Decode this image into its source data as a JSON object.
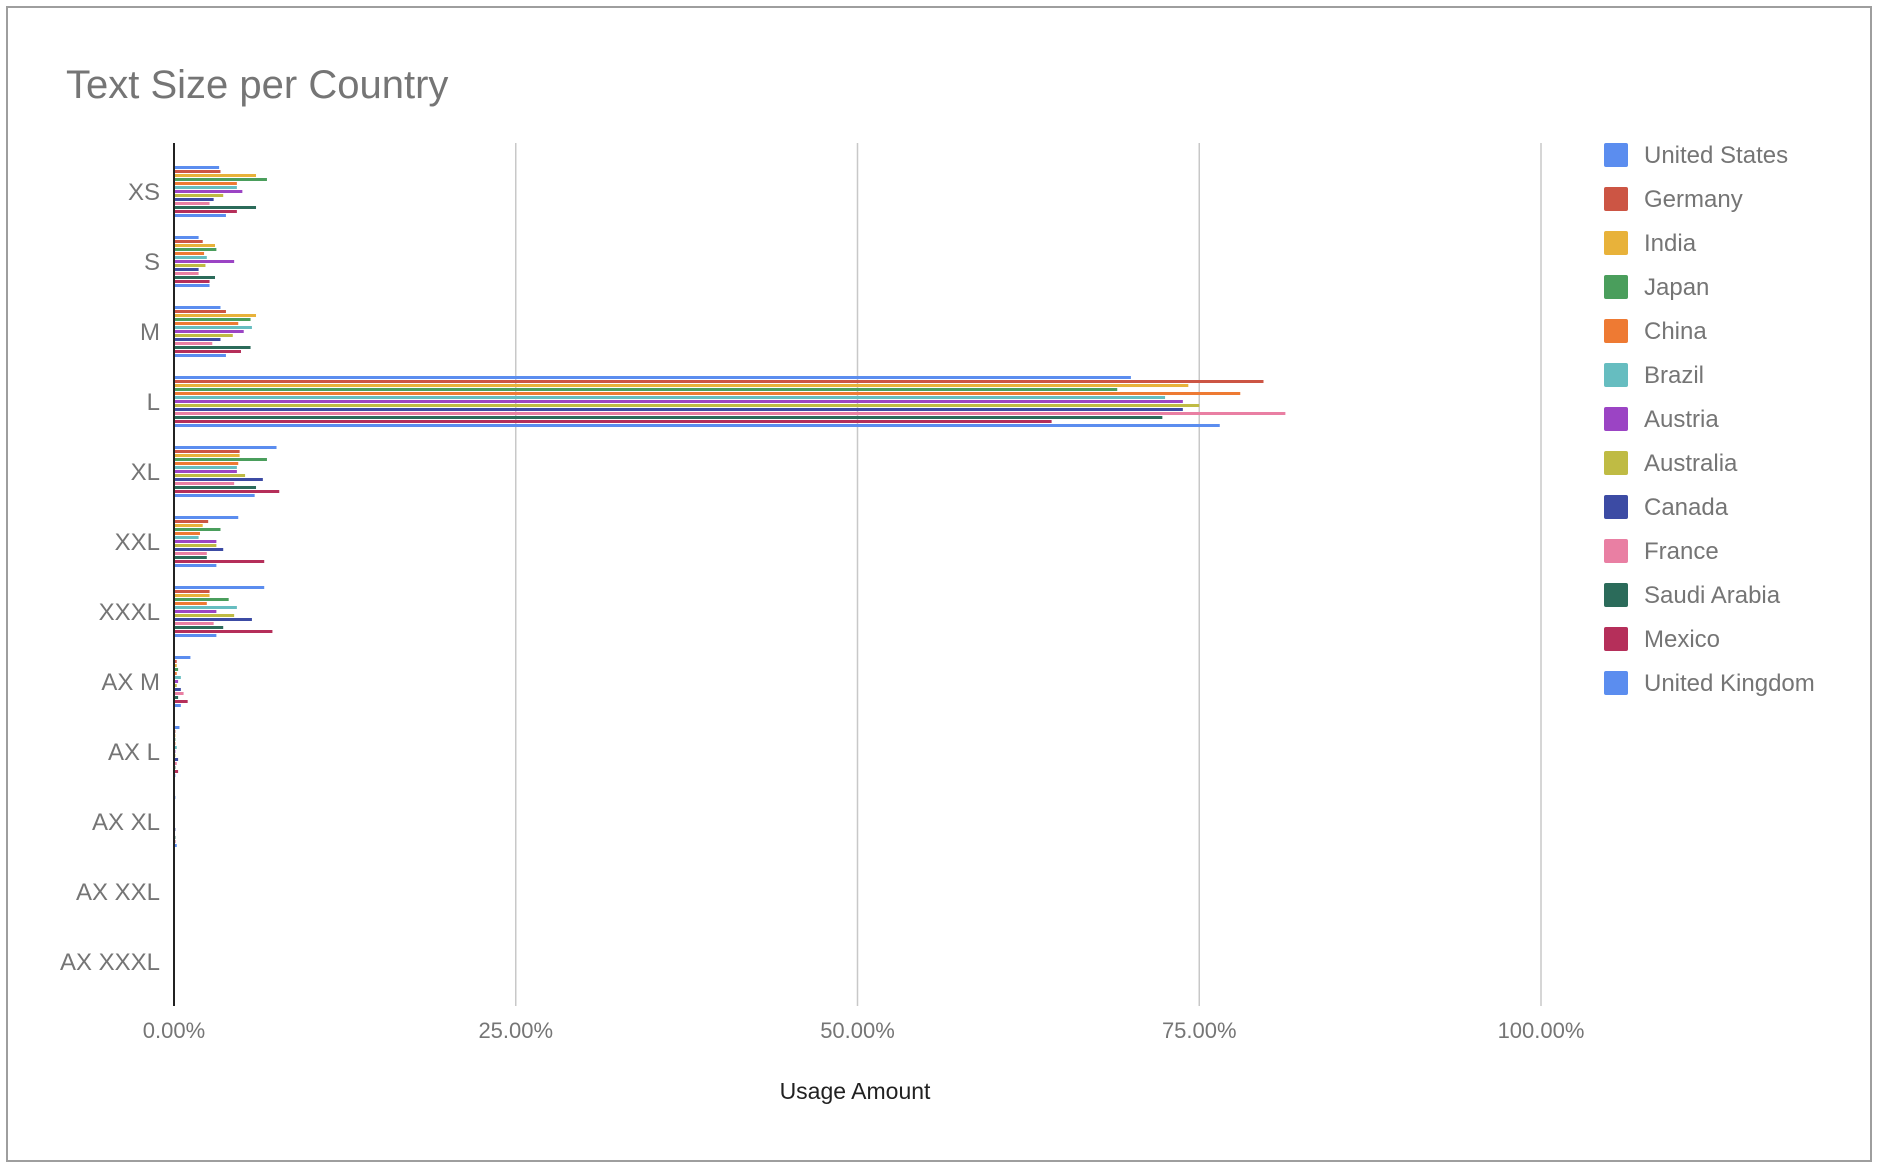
{
  "chart_data": {
    "type": "bar",
    "orientation": "horizontal",
    "title": "Text Size per Country",
    "xlabel": "Usage Amount",
    "ylabel": "",
    "xlim": [
      0,
      100
    ],
    "x_ticks": [
      "0.00%",
      "25.00%",
      "50.00%",
      "75.00%",
      "100.00%"
    ],
    "grid": true,
    "legend_position": "right",
    "categories": [
      "XS",
      "S",
      "M",
      "L",
      "XL",
      "XXL",
      "XXXL",
      "AX M",
      "AX L",
      "AX XL",
      "AX XXL",
      "AX XXXL"
    ],
    "series": [
      {
        "name": "United States",
        "color": "#5b8def",
        "values": [
          3.3,
          1.8,
          3.4,
          70.0,
          7.5,
          4.7,
          6.6,
          1.2,
          0.4,
          0.1,
          0.05,
          0.05
        ]
      },
      {
        "name": "Germany",
        "color": "#cc5544",
        "values": [
          3.4,
          2.1,
          3.8,
          79.7,
          4.8,
          2.5,
          2.6,
          0.2,
          0.1,
          0.05,
          0.05,
          0.05
        ]
      },
      {
        "name": "India",
        "color": "#e8b23a",
        "values": [
          6.0,
          3.0,
          6.0,
          74.2,
          4.8,
          2.1,
          2.6,
          0.2,
          0.1,
          0.05,
          0.05,
          0.05
        ]
      },
      {
        "name": "Japan",
        "color": "#4a9e5c",
        "values": [
          6.8,
          3.1,
          5.6,
          69.0,
          6.8,
          3.4,
          4.0,
          0.3,
          0.1,
          0.05,
          0.05,
          0.05
        ]
      },
      {
        "name": "China",
        "color": "#ee7a33",
        "values": [
          4.6,
          2.2,
          4.7,
          78.0,
          4.7,
          1.9,
          2.4,
          0.2,
          0.1,
          0.05,
          0.05,
          0.05
        ]
      },
      {
        "name": "Brazil",
        "color": "#66bdc0",
        "values": [
          4.6,
          2.4,
          5.7,
          72.5,
          4.6,
          1.8,
          4.6,
          0.5,
          0.2,
          0.05,
          0.05,
          0.05
        ]
      },
      {
        "name": "Austria",
        "color": "#9b44c4",
        "values": [
          5.0,
          4.4,
          5.1,
          73.8,
          4.6,
          3.1,
          3.1,
          0.3,
          0.1,
          0.05,
          0.05,
          0.05
        ]
      },
      {
        "name": "Australia",
        "color": "#bfbb44",
        "values": [
          3.6,
          2.3,
          4.3,
          75.0,
          5.2,
          3.1,
          4.4,
          0.2,
          0.1,
          0.05,
          0.05,
          0.05
        ]
      },
      {
        "name": "Canada",
        "color": "#3c4ba4",
        "values": [
          2.9,
          1.8,
          3.4,
          73.8,
          6.5,
          3.6,
          5.7,
          0.5,
          0.3,
          0.1,
          0.05,
          0.05
        ]
      },
      {
        "name": "France",
        "color": "#e97fa3",
        "values": [
          2.6,
          1.8,
          2.8,
          81.3,
          4.4,
          2.4,
          2.9,
          0.7,
          0.2,
          0.05,
          0.05,
          0.05
        ]
      },
      {
        "name": "Saudi Arabia",
        "color": "#2b6b5a",
        "values": [
          6.0,
          3.0,
          5.6,
          72.3,
          6.0,
          2.4,
          3.6,
          0.3,
          0.1,
          0.1,
          0.05,
          0.05
        ]
      },
      {
        "name": "Mexico",
        "color": "#b52f5a",
        "values": [
          4.6,
          2.6,
          4.9,
          64.2,
          7.7,
          6.6,
          7.2,
          1.0,
          0.3,
          0.1,
          0.05,
          0.05
        ]
      },
      {
        "name": "United Kingdom",
        "color": "#5b8def",
        "values": [
          3.8,
          2.6,
          3.8,
          76.5,
          5.9,
          3.1,
          3.1,
          0.5,
          0.1,
          0.2,
          0.05,
          0.05
        ]
      }
    ]
  }
}
